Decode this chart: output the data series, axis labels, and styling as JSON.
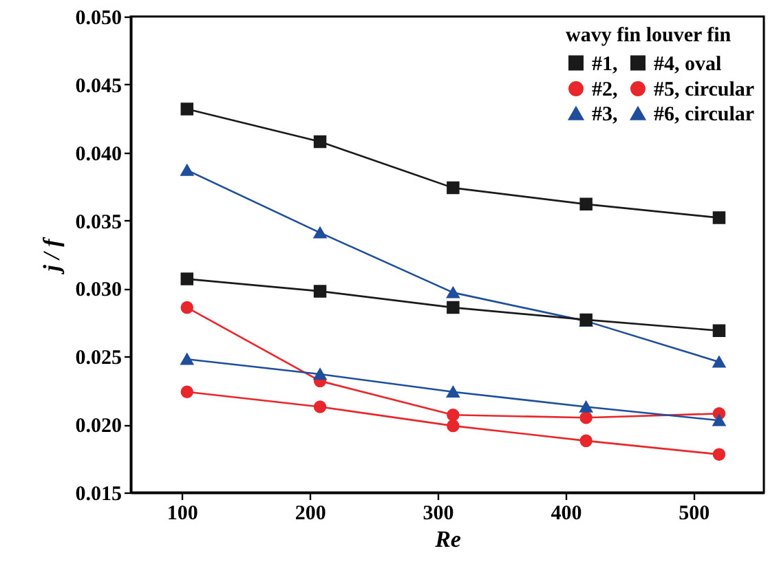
{
  "chart_data": {
    "type": "line",
    "xlabel": "Re",
    "ylabel": "j / f",
    "legend_title": "wavy fin   louver fin",
    "legend": "top right",
    "grid": false,
    "x": [
      104,
      208,
      312,
      416,
      520
    ],
    "xlim": [
      60,
      555
    ],
    "xticks": [
      100,
      200,
      300,
      400,
      500
    ],
    "ylim": [
      0.015,
      0.05
    ],
    "yticks": [
      {
        "value": 0.015,
        "label": "0.015"
      },
      {
        "value": 0.02,
        "label": "0.020"
      },
      {
        "value": 0.025,
        "label": "0.025"
      },
      {
        "value": 0.03,
        "label": "0.030"
      },
      {
        "value": 0.035,
        "label": "0.035"
      },
      {
        "value": 0.04,
        "label": "0.040"
      },
      {
        "value": 0.045,
        "label": "0.045"
      },
      {
        "value": 0.05,
        "label": "0.050"
      }
    ],
    "series": [
      {
        "name": "#1,",
        "color": "#1a1a1a",
        "marker": "square",
        "values": [
          0.0432,
          0.0408,
          0.0374,
          0.0362,
          0.0352
        ]
      },
      {
        "name": "#2,",
        "color": "#e8262b",
        "marker": "circle",
        "values": [
          0.0286,
          0.0232,
          0.0207,
          0.0205,
          0.0208
        ]
      },
      {
        "name": "#3,",
        "color": "#1f4e9c",
        "marker": "triangle",
        "values": [
          0.0387,
          0.0341,
          0.0297,
          0.0276,
          0.0246
        ]
      },
      {
        "name": "#4, oval",
        "color": "#1a1a1a",
        "marker": "square",
        "values": [
          0.0307,
          0.0298,
          0.0286,
          0.0277,
          0.0269
        ]
      },
      {
        "name": "#5, circular",
        "color": "#e8262b",
        "marker": "circle",
        "values": [
          0.0224,
          0.0213,
          0.0199,
          0.0188,
          0.0178
        ]
      },
      {
        "name": "#6, circular",
        "color": "#1f4e9c",
        "marker": "triangle",
        "values": [
          0.0248,
          0.0237,
          0.0224,
          0.0213,
          0.0203
        ]
      }
    ]
  }
}
